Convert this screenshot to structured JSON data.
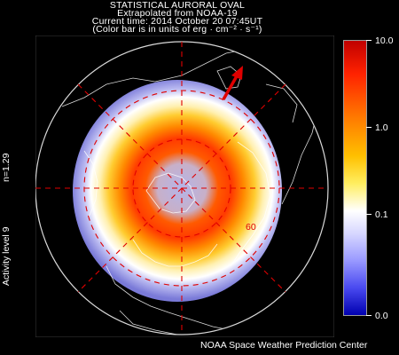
{
  "header": {
    "line1": "STATISTICAL AURORAL OVAL",
    "line2": "Extrapolated from NOAA-19",
    "line3": "Current time: 2014 October 20 07:45UT",
    "line4": "(Color bar is in units of erg · cm⁻² · s⁻¹)"
  },
  "side": {
    "n_value": "n=1.29",
    "activity": "Activity level 9"
  },
  "map": {
    "latitude_label": "60",
    "sun_direction": "arrow-icon"
  },
  "colorbar": {
    "ticks": [
      "10.0",
      "1.0",
      "0.1",
      "0.0"
    ]
  },
  "credit": "NOAA Space Weather Prediction Center"
}
